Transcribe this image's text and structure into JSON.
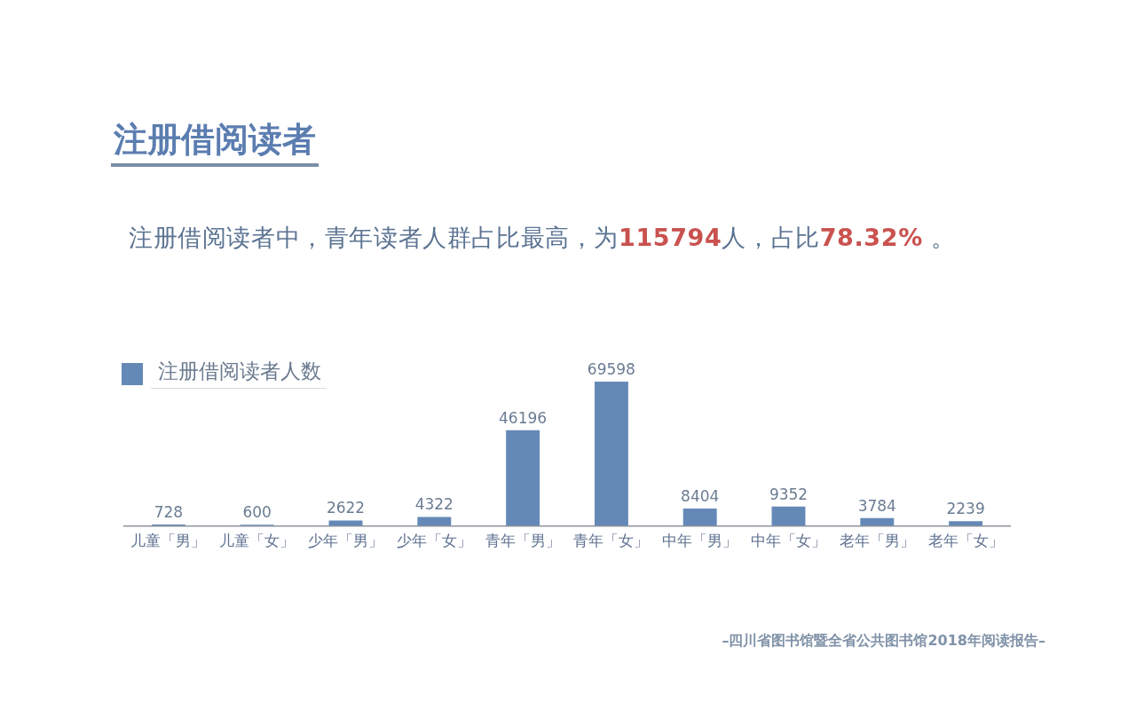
{
  "chart_data": {
    "type": "bar",
    "title": "注册借阅读者",
    "subtitle": "注册借阅读者中，青年读者人群占比最高，为115794人，占比78.32% 。",
    "categories": [
      "儿童「男」",
      "儿童「女」",
      "少年「男」",
      "少年「女」",
      "青年「男」",
      "青年「女」",
      "中年「男」",
      "中年「女」",
      "老年「男」",
      "老年「女」"
    ],
    "series": [
      {
        "name": "注册借阅读者人数",
        "color": "#6589b7",
        "values": [
          728,
          600,
          2622,
          4322,
          46196,
          69598,
          8404,
          9352,
          3784,
          2239
        ]
      }
    ],
    "data_labels": true,
    "legend": "top left",
    "tick_labels": "x",
    "grid": false,
    "annotations": [
      "–四川省图书馆暨全省公共图书馆2018年阅读报告–"
    ]
  }
}
